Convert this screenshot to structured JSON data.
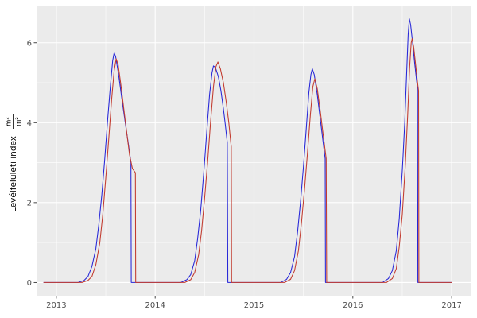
{
  "chart_data": {
    "type": "line",
    "title": "",
    "ylabel_main": "Levélfelületi index",
    "ylabel_unit_numerator": "m²",
    "ylabel_unit_denominator": "m²",
    "xlabel": "",
    "xlim": [
      2012.8,
      2017.2
    ],
    "ylim": [
      -0.33,
      6.93
    ],
    "x_ticks": [
      2013,
      2014,
      2015,
      2016,
      2017
    ],
    "x_tick_labels": [
      "2013",
      "2014",
      "2015",
      "2016",
      "2017"
    ],
    "x_minor": [
      2013.5,
      2014.5,
      2015.5,
      2016.5
    ],
    "y_ticks": [
      0,
      2,
      4,
      6
    ],
    "y_tick_labels": [
      "0",
      "2",
      "4",
      "6"
    ],
    "y_minor": [
      1,
      3,
      5
    ],
    "grid": true,
    "legend": "none",
    "panel_bg": "#ebebeb",
    "grid_color": "#ffffff",
    "axis_text_color": "#4d4d4d",
    "tick_mark_color": "#333333",
    "series": [
      {
        "name": "series-blue",
        "color": "#2626d8",
        "points": [
          [
            2012.87,
            0
          ],
          [
            2013.22,
            0
          ],
          [
            2013.28,
            0.05
          ],
          [
            2013.32,
            0.15
          ],
          [
            2013.36,
            0.4
          ],
          [
            2013.4,
            0.85
          ],
          [
            2013.43,
            1.45
          ],
          [
            2013.46,
            2.2
          ],
          [
            2013.49,
            3.1
          ],
          [
            2013.52,
            4.1
          ],
          [
            2013.55,
            5.0
          ],
          [
            2013.57,
            5.55
          ],
          [
            2013.585,
            5.75
          ],
          [
            2013.6,
            5.65
          ],
          [
            2013.63,
            5.2
          ],
          [
            2013.66,
            4.65
          ],
          [
            2013.7,
            3.95
          ],
          [
            2013.73,
            3.45
          ],
          [
            2013.755,
            3.0
          ],
          [
            2013.758,
            0
          ],
          [
            2014.26,
            0
          ],
          [
            2014.32,
            0.07
          ],
          [
            2014.36,
            0.2
          ],
          [
            2014.4,
            0.55
          ],
          [
            2014.43,
            1.1
          ],
          [
            2014.46,
            1.8
          ],
          [
            2014.49,
            2.7
          ],
          [
            2014.52,
            3.7
          ],
          [
            2014.55,
            4.7
          ],
          [
            2014.575,
            5.25
          ],
          [
            2014.59,
            5.42
          ],
          [
            2014.61,
            5.38
          ],
          [
            2014.64,
            5.15
          ],
          [
            2014.665,
            4.8
          ],
          [
            2014.69,
            4.35
          ],
          [
            2014.71,
            3.95
          ],
          [
            2014.73,
            3.5
          ],
          [
            2014.735,
            0
          ],
          [
            2015.27,
            0
          ],
          [
            2015.33,
            0.08
          ],
          [
            2015.37,
            0.25
          ],
          [
            2015.41,
            0.65
          ],
          [
            2015.44,
            1.25
          ],
          [
            2015.47,
            2.0
          ],
          [
            2015.5,
            2.9
          ],
          [
            2015.53,
            3.9
          ],
          [
            2015.555,
            4.75
          ],
          [
            2015.575,
            5.2
          ],
          [
            2015.59,
            5.35
          ],
          [
            2015.61,
            5.2
          ],
          [
            2015.64,
            4.7
          ],
          [
            2015.67,
            4.1
          ],
          [
            2015.7,
            3.5
          ],
          [
            2015.72,
            3.1
          ],
          [
            2015.723,
            0
          ],
          [
            2016.3,
            0
          ],
          [
            2016.36,
            0.1
          ],
          [
            2016.4,
            0.3
          ],
          [
            2016.44,
            0.8
          ],
          [
            2016.47,
            1.6
          ],
          [
            2016.5,
            2.8
          ],
          [
            2016.525,
            4.0
          ],
          [
            2016.545,
            5.3
          ],
          [
            2016.56,
            6.2
          ],
          [
            2016.572,
            6.6
          ],
          [
            2016.585,
            6.45
          ],
          [
            2016.605,
            6.0
          ],
          [
            2016.625,
            5.5
          ],
          [
            2016.645,
            5.05
          ],
          [
            2016.655,
            4.85
          ],
          [
            2016.658,
            0
          ],
          [
            2017.0,
            0
          ]
        ]
      },
      {
        "name": "series-red",
        "color": "#c23a2e",
        "points": [
          [
            2012.87,
            0
          ],
          [
            2013.26,
            0
          ],
          [
            2013.32,
            0.05
          ],
          [
            2013.36,
            0.15
          ],
          [
            2013.4,
            0.45
          ],
          [
            2013.44,
            1.0
          ],
          [
            2013.47,
            1.7
          ],
          [
            2013.5,
            2.6
          ],
          [
            2013.53,
            3.6
          ],
          [
            2013.56,
            4.6
          ],
          [
            2013.585,
            5.3
          ],
          [
            2013.605,
            5.6
          ],
          [
            2013.625,
            5.45
          ],
          [
            2013.65,
            5.0
          ],
          [
            2013.68,
            4.4
          ],
          [
            2013.71,
            3.8
          ],
          [
            2013.74,
            3.2
          ],
          [
            2013.77,
            2.85
          ],
          [
            2013.8,
            2.75
          ],
          [
            2013.803,
            0
          ],
          [
            2014.3,
            0
          ],
          [
            2014.36,
            0.07
          ],
          [
            2014.4,
            0.25
          ],
          [
            2014.44,
            0.7
          ],
          [
            2014.47,
            1.3
          ],
          [
            2014.5,
            2.1
          ],
          [
            2014.53,
            3.0
          ],
          [
            2014.56,
            4.0
          ],
          [
            2014.59,
            4.9
          ],
          [
            2014.615,
            5.4
          ],
          [
            2014.635,
            5.52
          ],
          [
            2014.66,
            5.35
          ],
          [
            2014.69,
            5.0
          ],
          [
            2014.72,
            4.5
          ],
          [
            2014.745,
            4.0
          ],
          [
            2014.765,
            3.5
          ],
          [
            2014.77,
            3.4
          ],
          [
            2014.773,
            0
          ],
          [
            2015.31,
            0
          ],
          [
            2015.37,
            0.08
          ],
          [
            2015.41,
            0.3
          ],
          [
            2015.45,
            0.8
          ],
          [
            2015.48,
            1.5
          ],
          [
            2015.51,
            2.3
          ],
          [
            2015.54,
            3.2
          ],
          [
            2015.57,
            4.2
          ],
          [
            2015.595,
            4.9
          ],
          [
            2015.615,
            5.1
          ],
          [
            2015.64,
            4.85
          ],
          [
            2015.67,
            4.3
          ],
          [
            2015.7,
            3.7
          ],
          [
            2015.73,
            3.1
          ],
          [
            2015.735,
            0
          ],
          [
            2016.34,
            0
          ],
          [
            2016.4,
            0.1
          ],
          [
            2016.44,
            0.35
          ],
          [
            2016.47,
            0.9
          ],
          [
            2016.5,
            1.7
          ],
          [
            2016.53,
            2.9
          ],
          [
            2016.555,
            4.2
          ],
          [
            2016.575,
            5.4
          ],
          [
            2016.59,
            6.0
          ],
          [
            2016.6,
            6.1
          ],
          [
            2016.615,
            5.9
          ],
          [
            2016.635,
            5.45
          ],
          [
            2016.655,
            5.0
          ],
          [
            2016.665,
            4.8
          ],
          [
            2016.668,
            0
          ],
          [
            2017.0,
            0
          ]
        ]
      }
    ]
  }
}
